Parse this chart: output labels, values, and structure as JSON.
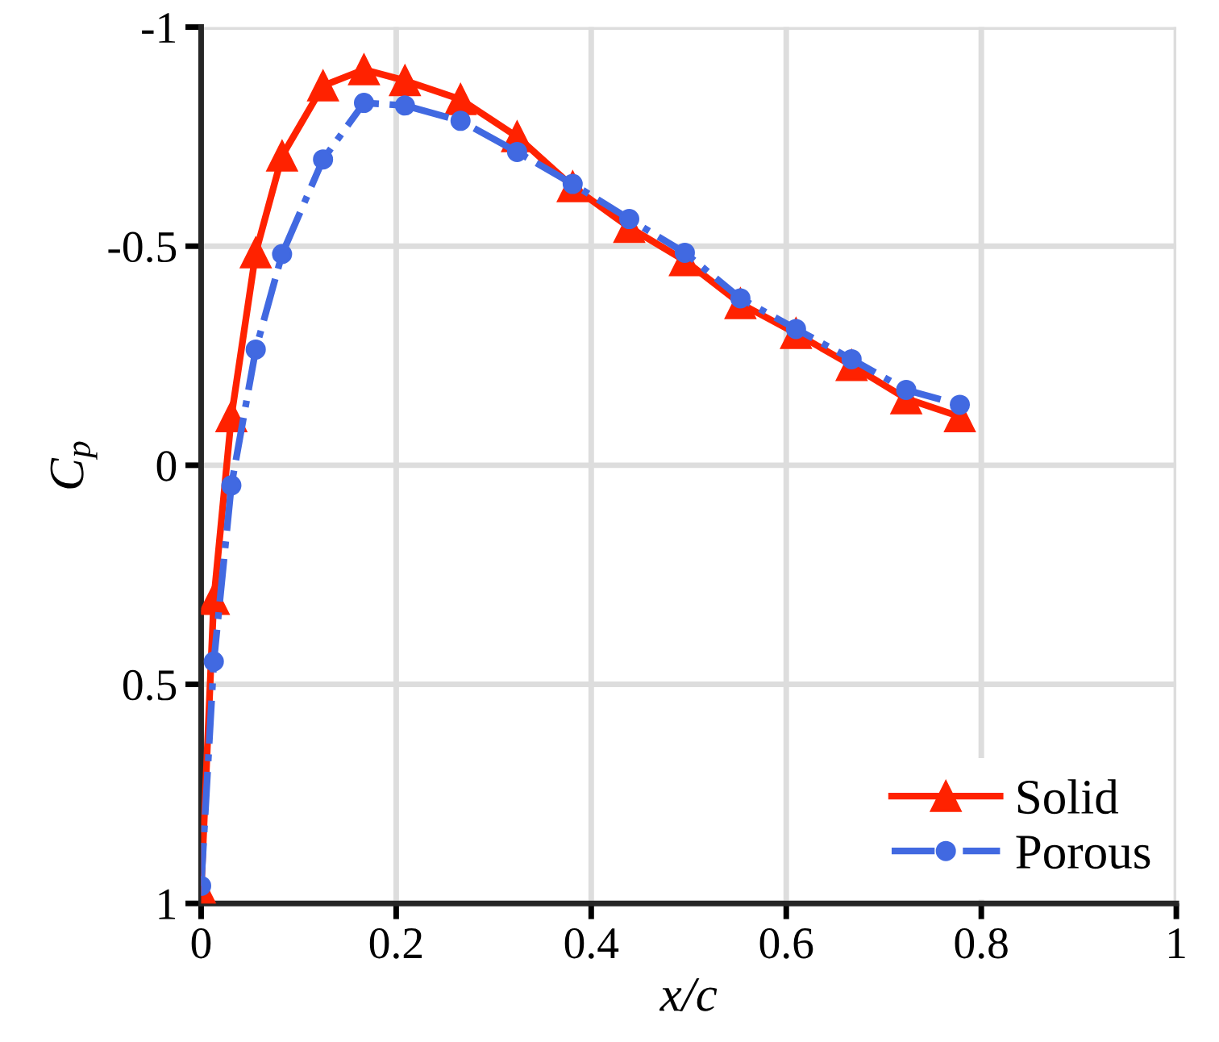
{
  "chart_data": {
    "type": "line",
    "xlabel": "x/c",
    "ylabel": "C$_{p}$",
    "xlim": [
      0,
      1
    ],
    "ylim": [
      1,
      -1
    ],
    "xticks": [
      0,
      0.2,
      0.4,
      0.6,
      0.8,
      1
    ],
    "yticks": [
      {
        "value": -1,
        "label": "-1"
      },
      {
        "value": -0.5,
        "label": "-0.5"
      },
      0,
      0.5,
      1
    ],
    "grid": true,
    "legend": "bottom right",
    "series": [
      {
        "name": "Solid",
        "color": "#ff2200",
        "marker": "triangle",
        "line_style": "solid",
        "x": [
          0,
          0.013,
          0.031,
          0.056,
          0.083,
          0.125,
          0.167,
          0.209,
          0.266,
          0.324,
          0.381,
          0.439,
          0.496,
          0.553,
          0.61,
          0.667,
          0.723,
          0.778
        ],
        "values": [
          0.97,
          0.306,
          -0.111,
          -0.485,
          -0.706,
          -0.866,
          -0.903,
          -0.878,
          -0.835,
          -0.75,
          -0.636,
          -0.543,
          -0.467,
          -0.369,
          -0.301,
          -0.228,
          -0.152,
          -0.111
        ]
      },
      {
        "name": "Porous",
        "color": "#4169e1",
        "marker": "circle",
        "line_style": "dashdot",
        "x": [
          0,
          0.013,
          0.031,
          0.056,
          0.083,
          0.125,
          0.167,
          0.209,
          0.266,
          0.324,
          0.381,
          0.439,
          0.496,
          0.553,
          0.61,
          0.667,
          0.723,
          0.778
        ],
        "values": [
          0.96,
          0.448,
          0.046,
          -0.264,
          -0.482,
          -0.698,
          -0.827,
          -0.821,
          -0.786,
          -0.715,
          -0.642,
          -0.562,
          -0.485,
          -0.381,
          -0.311,
          -0.242,
          -0.172,
          -0.138
        ]
      }
    ]
  }
}
